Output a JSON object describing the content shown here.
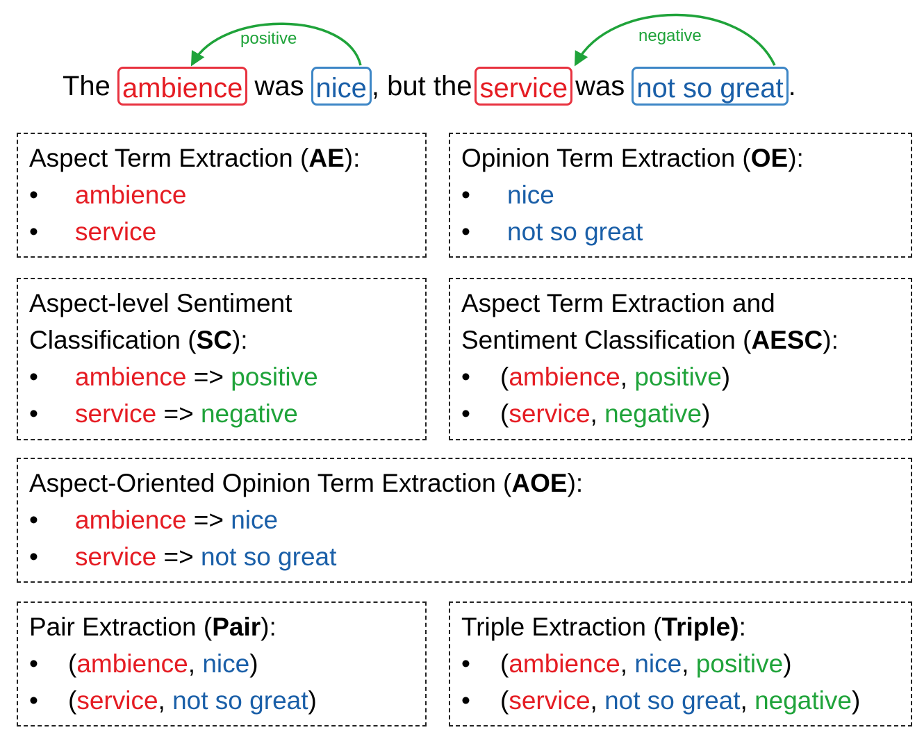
{
  "sentence": {
    "t1": "The",
    "aspect1": "ambience",
    "t2": "was",
    "opinion1": "nice",
    "t3": ", but the",
    "aspect2": "service",
    "t4": "was",
    "opinion2": "not so great",
    "t5": ".",
    "arc1_label": "positive",
    "arc2_label": "negative"
  },
  "ae": {
    "title_pre": "Aspect Term Extraction (",
    "abbr": "AE",
    "title_post": "):",
    "items": [
      "ambience",
      "service"
    ]
  },
  "oe": {
    "title_pre": "Opinion Term Extraction (",
    "abbr": "OE",
    "title_post": "):",
    "items": [
      "nice",
      "not so great"
    ]
  },
  "sc": {
    "title_line1": "Aspect-level Sentiment",
    "title_pre": "Classification (",
    "abbr": "SC",
    "title_post": "):",
    "items": [
      {
        "aspect": "ambience",
        "arrow": " => ",
        "sentiment": "positive"
      },
      {
        "aspect": "service",
        "arrow": " => ",
        "sentiment": "negative"
      }
    ]
  },
  "aesc": {
    "title_line1": "Aspect Term Extraction and",
    "title_pre": "Sentiment Classification (",
    "abbr": "AESC",
    "title_post": "):",
    "items": [
      {
        "open": "(",
        "aspect": "ambience",
        "sep": ", ",
        "sentiment": "positive",
        "close": ")"
      },
      {
        "open": "(",
        "aspect": "service",
        "sep": ", ",
        "sentiment": "negative",
        "close": ")"
      }
    ]
  },
  "aoe": {
    "title_pre": "Aspect-Oriented Opinion Term Extraction (",
    "abbr": "AOE",
    "title_post": "):",
    "items": [
      {
        "aspect": "ambience",
        "arrow": " => ",
        "opinion": "nice"
      },
      {
        "aspect": "service",
        "arrow": " => ",
        "opinion": "not so great"
      }
    ]
  },
  "pair": {
    "title_pre": "Pair Extraction (",
    "abbr": "Pair",
    "title_post": "):",
    "items": [
      {
        "open": "(",
        "aspect": "ambience",
        "sep": ", ",
        "opinion": "nice",
        "close": ")"
      },
      {
        "open": "(",
        "aspect": "service",
        "sep": ", ",
        "opinion": "not so great",
        "close": ")"
      }
    ]
  },
  "triple": {
    "title_pre": "Triple Extraction (",
    "abbr": "Triple)",
    "title_post": ":",
    "items": [
      {
        "open": "(",
        "aspect": "ambience",
        "sep1": ", ",
        "opinion": "nice",
        "sep2": ", ",
        "sentiment": "positive",
        "close": ")"
      },
      {
        "open": "(",
        "aspect": "service",
        "sep1": ", ",
        "opinion": "not so great",
        "sep2": ", ",
        "sentiment": "negative",
        "close": ")"
      }
    ]
  },
  "colors": {
    "aspect": "#e51c23",
    "opinion": "#1a5fa8",
    "sentiment": "#1fa33a"
  }
}
